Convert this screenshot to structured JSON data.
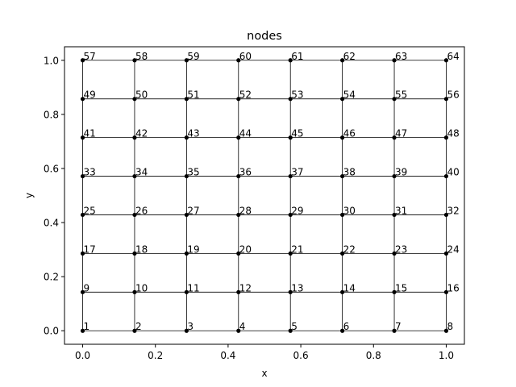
{
  "chart_data": {
    "type": "scatter",
    "title": "nodes",
    "xlabel": "x",
    "ylabel": "y",
    "xlim": [
      -0.05,
      1.05
    ],
    "ylim": [
      -0.05,
      1.05
    ],
    "xticks": [
      0.0,
      0.2,
      0.4,
      0.6,
      0.8,
      1.0
    ],
    "xtick_labels": [
      "0.0",
      "0.2",
      "0.4",
      "0.6",
      "0.8",
      "1.0"
    ],
    "yticks": [
      0.0,
      0.2,
      0.4,
      0.6,
      0.8,
      1.0
    ],
    "ytick_labels": [
      "0.0",
      "0.2",
      "0.4",
      "0.6",
      "0.8",
      "1.0"
    ],
    "grid": false,
    "colors": {
      "marks": "#000000",
      "edges": "#000000",
      "background": "#ffffff"
    },
    "nodes_x": [
      0,
      0.142857,
      0.285714,
      0.428571,
      0.571429,
      0.714286,
      0.857143,
      1.0
    ],
    "nodes_y": [
      0,
      0.142857,
      0.285714,
      0.428571,
      0.571429,
      0.714286,
      0.857143,
      1.0
    ],
    "node_numbering": "row-major from bottom-left, starting at 1",
    "node_labels": [
      "1",
      "2",
      "3",
      "4",
      "5",
      "6",
      "7",
      "8",
      "9",
      "10",
      "11",
      "12",
      "13",
      "14",
      "15",
      "16",
      "17",
      "18",
      "19",
      "20",
      "21",
      "22",
      "23",
      "24",
      "25",
      "26",
      "27",
      "28",
      "29",
      "30",
      "31",
      "32",
      "33",
      "34",
      "35",
      "36",
      "37",
      "38",
      "39",
      "40",
      "41",
      "42",
      "43",
      "44",
      "45",
      "46",
      "47",
      "48",
      "49",
      "50",
      "51",
      "52",
      "53",
      "54",
      "55",
      "56",
      "57",
      "58",
      "59",
      "60",
      "61",
      "62",
      "63",
      "64"
    ]
  }
}
